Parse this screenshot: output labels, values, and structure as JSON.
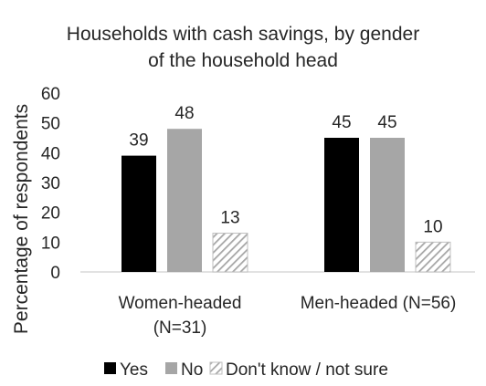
{
  "chart_data": {
    "type": "bar",
    "title": "Households with cash savings, by gender of the household head",
    "title_lines": [
      "Households with cash savings, by gender",
      "of the household head"
    ],
    "ylabel": "Percentage of respondents",
    "xlabel": "",
    "ylim": [
      0,
      60
    ],
    "yticks": [
      0,
      10,
      20,
      30,
      40,
      50,
      60
    ],
    "categories": [
      "Women-headed (N=31)",
      "Men-headed (N=56)"
    ],
    "category_lines": [
      [
        "Women-headed",
        "(N=31)"
      ],
      [
        "Men-headed (N=56)"
      ]
    ],
    "series": [
      {
        "name": "Yes",
        "values": [
          39,
          45
        ],
        "color": "#000000",
        "pattern": "solid"
      },
      {
        "name": "No",
        "values": [
          48,
          45
        ],
        "color": "#a6a6a6",
        "pattern": "solid"
      },
      {
        "name": "Don't know / not sure",
        "values": [
          13,
          10
        ],
        "color": "#bfbfbf",
        "pattern": "diagonal-hatch"
      }
    ],
    "grid": false,
    "legend_position": "bottom",
    "data_labels": true
  }
}
